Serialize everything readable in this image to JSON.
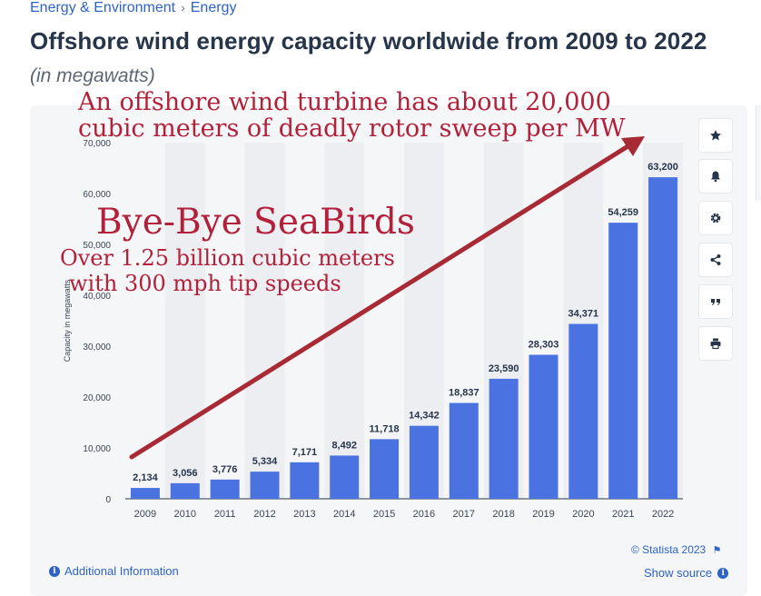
{
  "breadcrumb": {
    "items": [
      "Energy & Environment",
      "Energy"
    ],
    "separator": "›"
  },
  "title": "Offshore wind energy capacity worldwide from 2009 to 2022",
  "subtitle": "(in megawatts)",
  "annotations": {
    "line1": "An offshore wind turbine has about 20,000",
    "line2": "cubic meters of deadly rotor sweep per MW",
    "headline": "Bye-Bye SeaBirds",
    "line3": "Over 1.25 billion cubic meters",
    "line4": "with 300 mph tip speeds",
    "color": "#b3203a"
  },
  "chart_data": {
    "type": "bar",
    "categories": [
      "2009",
      "2010",
      "2011",
      "2012",
      "2013",
      "2014",
      "2015",
      "2016",
      "2017",
      "2018",
      "2019",
      "2020",
      "2021",
      "2022"
    ],
    "values": [
      2134,
      3056,
      3776,
      5334,
      7171,
      8492,
      11718,
      14342,
      18837,
      23590,
      28303,
      34371,
      54259,
      63200
    ],
    "value_labels": [
      "2,134",
      "3,056",
      "3,776",
      "5,334",
      "7,171",
      "8,492",
      "11,718",
      "14,342",
      "18,837",
      "23,590",
      "28,303",
      "34,371",
      "54,259",
      "63,200"
    ],
    "ylabel": "Capacity in megawatts",
    "ylim": [
      0,
      70000
    ],
    "yticks": [
      0,
      10000,
      20000,
      30000,
      40000,
      50000,
      60000,
      70000
    ],
    "ytick_labels": [
      "0",
      "10,000",
      "20,000",
      "30,000",
      "40,000",
      "50,000",
      "60,000",
      "70,000"
    ],
    "bar_color": "#4a72e0",
    "grid": false
  },
  "sidebar_buttons": [
    {
      "name": "favorite-button",
      "icon": "star-icon"
    },
    {
      "name": "notification-button",
      "icon": "bell-icon"
    },
    {
      "name": "settings-button",
      "icon": "gear-icon"
    },
    {
      "name": "share-button",
      "icon": "share-icon"
    },
    {
      "name": "cite-button",
      "icon": "quote-icon"
    },
    {
      "name": "print-button",
      "icon": "printer-icon"
    }
  ],
  "footer": {
    "credit": "© Statista 2023",
    "additional_info": "Additional Information",
    "show_source": "Show source"
  },
  "colors": {
    "accent": "#2d63c8",
    "title": "#27354a",
    "arrow": "#a82a35"
  }
}
